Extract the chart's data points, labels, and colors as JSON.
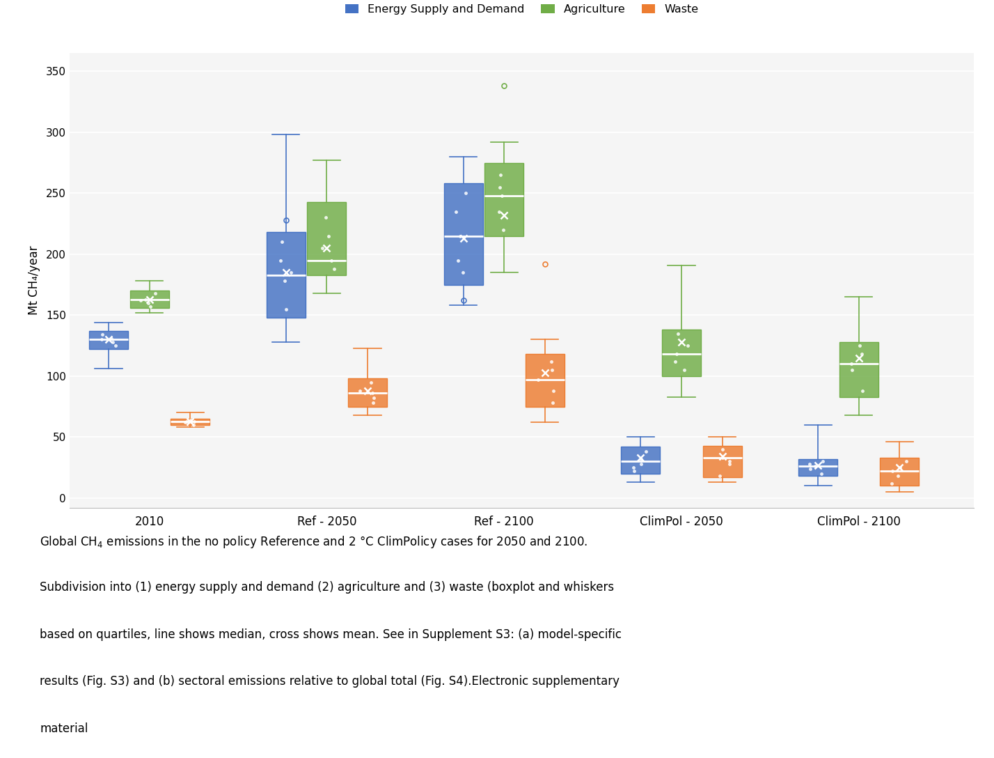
{
  "categories": [
    "2010",
    "Ref - 2050",
    "Ref - 2100",
    "ClimPol - 2050",
    "ClimPol - 2100"
  ],
  "x_positions": [
    1,
    2,
    3,
    4,
    5
  ],
  "box_width": 0.22,
  "offsets": [
    -0.23,
    0.0,
    0.23
  ],
  "colors": {
    "energy": "#4472c4",
    "agriculture": "#70ad47",
    "waste": "#ed7d31"
  },
  "ylabel": "Mt CH₄/year",
  "ylim": [
    -8,
    365
  ],
  "yticks": [
    0,
    50,
    100,
    150,
    200,
    250,
    300,
    350
  ],
  "boxes": {
    "energy": [
      {
        "whislo": 106,
        "q1": 122,
        "med": 130,
        "q3": 137,
        "whishi": 144,
        "mean": 130,
        "fliers": [],
        "pts": [
          125,
          131,
          128,
          134,
          130
        ]
      },
      {
        "whislo": 128,
        "q1": 148,
        "med": 183,
        "q3": 218,
        "whishi": 298,
        "mean": 185,
        "fliers": [
          228
        ],
        "pts": [
          155,
          185,
          178,
          195,
          210
        ]
      },
      {
        "whislo": 158,
        "q1": 175,
        "med": 215,
        "q3": 258,
        "whishi": 280,
        "mean": 213,
        "fliers": [
          162
        ],
        "pts": [
          185,
          215,
          235,
          250,
          195
        ]
      },
      {
        "whislo": 13,
        "q1": 20,
        "med": 30,
        "q3": 42,
        "whishi": 50,
        "mean": 33,
        "fliers": [],
        "pts": [
          22,
          32,
          28,
          38,
          25
        ]
      },
      {
        "whislo": 10,
        "q1": 18,
        "med": 26,
        "q3": 32,
        "whishi": 60,
        "mean": 27,
        "fliers": [],
        "pts": [
          20,
          26,
          24,
          30,
          28
        ]
      }
    ],
    "agriculture": [
      {
        "whislo": 152,
        "q1": 156,
        "med": 163,
        "q3": 170,
        "whishi": 178,
        "mean": 163,
        "fliers": [],
        "pts": [
          157,
          163,
          160,
          168,
          162
        ]
      },
      {
        "whislo": 168,
        "q1": 183,
        "med": 195,
        "q3": 243,
        "whishi": 277,
        "mean": 205,
        "fliers": [],
        "pts": [
          188,
          205,
          215,
          230,
          195
        ]
      },
      {
        "whislo": 185,
        "q1": 215,
        "med": 248,
        "q3": 275,
        "whishi": 292,
        "mean": 232,
        "fliers": [
          338
        ],
        "pts": [
          220,
          235,
          248,
          265,
          255
        ]
      },
      {
        "whislo": 83,
        "q1": 100,
        "med": 118,
        "q3": 138,
        "whishi": 191,
        "mean": 128,
        "fliers": [],
        "pts": [
          105,
          118,
          125,
          135,
          112
        ]
      },
      {
        "whislo": 68,
        "q1": 83,
        "med": 110,
        "q3": 128,
        "whishi": 165,
        "mean": 115,
        "fliers": [],
        "pts": [
          88,
          110,
          118,
          125,
          105
        ]
      }
    ],
    "waste": [
      {
        "whislo": 58,
        "q1": 60,
        "med": 63,
        "q3": 65,
        "whishi": 70,
        "mean": 63,
        "fliers": [],
        "pts": [
          60,
          63,
          62,
          64,
          63
        ]
      },
      {
        "whislo": 68,
        "q1": 75,
        "med": 86,
        "q3": 98,
        "whishi": 123,
        "mean": 88,
        "fliers": [],
        "pts": [
          78,
          86,
          82,
          95,
          88
        ]
      },
      {
        "whislo": 62,
        "q1": 75,
        "med": 97,
        "q3": 118,
        "whishi": 130,
        "mean": 103,
        "fliers": [
          192
        ],
        "pts": [
          78,
          97,
          105,
          112,
          88
        ]
      },
      {
        "whislo": 13,
        "q1": 17,
        "med": 33,
        "q3": 43,
        "whishi": 50,
        "mean": 34,
        "fliers": [],
        "pts": [
          18,
          33,
          28,
          40,
          30
        ]
      },
      {
        "whislo": 5,
        "q1": 10,
        "med": 22,
        "q3": 33,
        "whishi": 46,
        "mean": 25,
        "fliers": [],
        "pts": [
          12,
          22,
          18,
          30,
          25
        ]
      }
    ]
  },
  "caption_lines": [
    "Global CH₄ emissions in the no policy Reference and 2 °C ClimPolicy cases for 2050 and 2100.",
    "Subdivision into (1) energy supply and demand (2) agriculture and (3) waste (boxplot and whiskers",
    "based on quartiles, line shows median, cross shows mean. See in Supplement S3: (a) model-specific",
    "results (Fig. S3) and (b) sectoral emissions relative to global total (Fig. S4).Electronic supplementary",
    "material"
  ]
}
